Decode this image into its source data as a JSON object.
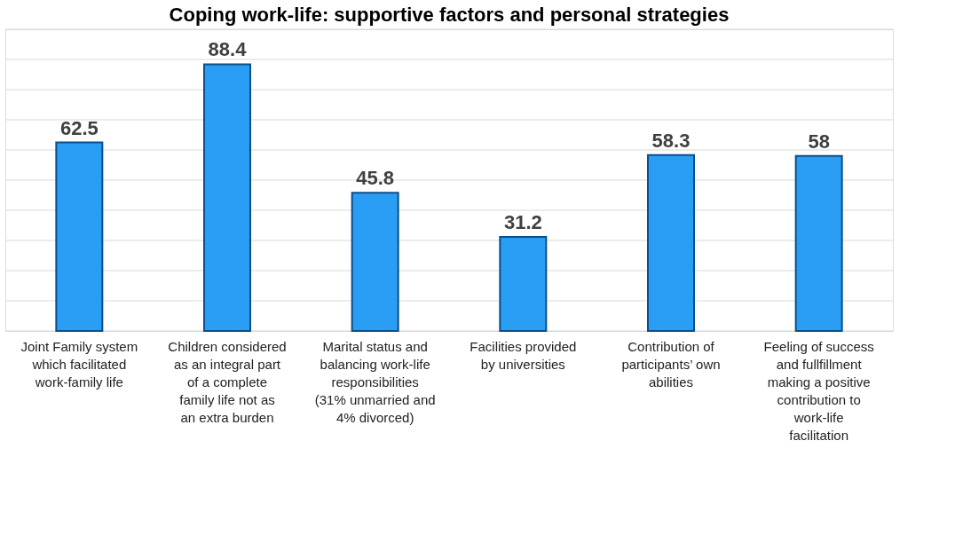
{
  "chart_data": {
    "type": "bar",
    "title": "Coping work-life: supportive factors and personal strategies",
    "categories": [
      "Joint Family system which facilitated work-family life",
      "Children considered as an integral part of a complete family life not as an extra burden",
      "Marital status and balancing work-life responsibilities (31% unmarried and 4% divorced)",
      "Facilities provided by universities",
      "Contribution of participants’ own abilities",
      "Feeling of success and fullfillment making a positive contribution to work-life facilitation"
    ],
    "values": [
      62.5,
      88.4,
      45.8,
      31.2,
      58.3,
      58
    ],
    "color": "#2a9df4",
    "ylim": [
      0,
      100
    ],
    "yticks": [
      {
        "value": 0,
        "label": null
      },
      {
        "value": 10,
        "label": null
      },
      {
        "value": 20,
        "label": null
      },
      {
        "value": 30,
        "label": null
      },
      {
        "value": 40,
        "label": null
      },
      {
        "value": 50,
        "label": null
      },
      {
        "value": 60,
        "label": null
      },
      {
        "value": 70,
        "label": null
      },
      {
        "value": 80,
        "label": null
      },
      {
        "value": 90,
        "label": null
      },
      {
        "value": 100,
        "label": null
      }
    ],
    "grid": "y",
    "tick_labels": "x",
    "data_labels": true
  }
}
